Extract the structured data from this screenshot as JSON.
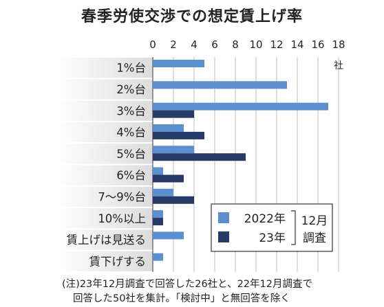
{
  "chart_data": {
    "type": "bar",
    "orientation": "horizontal",
    "title": "春季労使交渉での想定賃上げ率",
    "unit": "社",
    "xlim": [
      0,
      18
    ],
    "x_ticks": [
      0,
      2,
      4,
      6,
      8,
      10,
      12,
      14,
      16,
      18
    ],
    "grid": true,
    "legend_position": "bottom-right",
    "legend_group_label": "12月調査",
    "categories": [
      "1%台",
      "2%台",
      "3%台",
      "4%台",
      "5%台",
      "6%台",
      "7～9%台",
      "10%以上",
      "賃上げは見送る",
      "賃下げする"
    ],
    "series": [
      {
        "name": "2022年",
        "color": "#5b8fcf",
        "values": [
          5,
          13,
          17,
          3,
          4,
          1,
          2,
          1,
          3,
          1
        ]
      },
      {
        "name": "23年",
        "color": "#253a66",
        "values": [
          0,
          0,
          4,
          5,
          9,
          3,
          4,
          1,
          0,
          0
        ]
      }
    ],
    "footnote": [
      "(注)23年12月調査で回答した26社と、22年12月調査で",
      "回答した50社を集計。「検討中」と無回答を除く"
    ]
  }
}
